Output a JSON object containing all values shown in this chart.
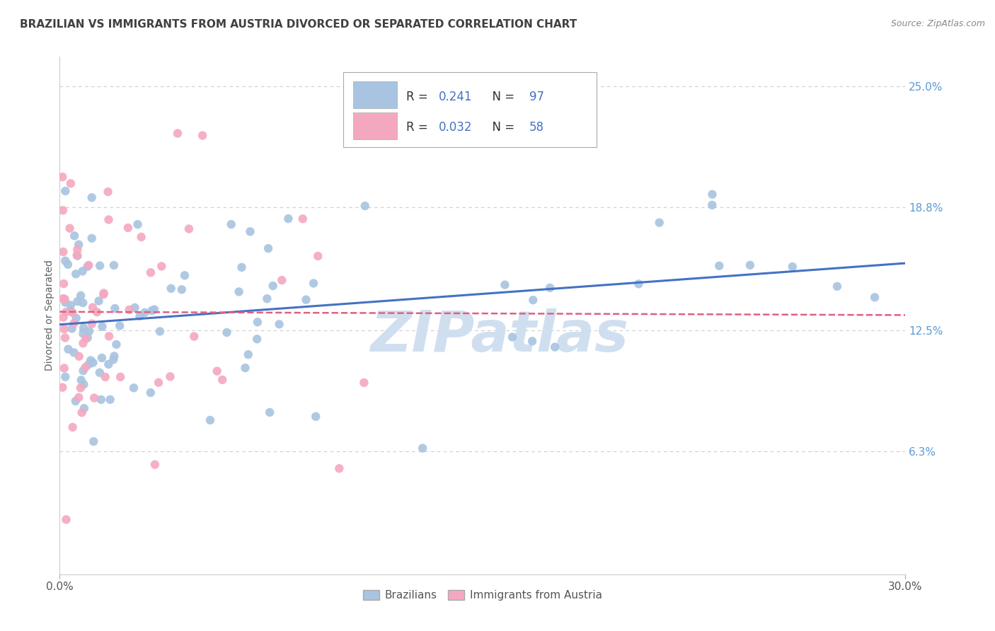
{
  "title": "BRAZILIAN VS IMMIGRANTS FROM AUSTRIA DIVORCED OR SEPARATED CORRELATION CHART",
  "source": "Source: ZipAtlas.com",
  "ylabel": "Divorced or Separated",
  "xmin": 0.0,
  "xmax": 30.0,
  "ymin": 0.0,
  "ymax": 26.5,
  "yticks": [
    6.3,
    12.5,
    18.8,
    25.0
  ],
  "xticks_vals": [
    0.0,
    30.0
  ],
  "xticks_labels": [
    "0.0%",
    "30.0%"
  ],
  "grid_color": "#cccccc",
  "bg_color": "#ffffff",
  "blue_color": "#4472c4",
  "blue_scatter_color": "#a8c4e0",
  "pink_color": "#e06080",
  "pink_scatter_color": "#f4a8c0",
  "tick_color": "#5b9bd5",
  "title_color": "#404040",
  "ylabel_color": "#606060",
  "source_color": "#888888",
  "watermark_color": "#d0dff0",
  "watermark_text": "ZIPatlas",
  "series": [
    {
      "name": "Brazilians",
      "R": 0.241,
      "N": 97,
      "seed": 42
    },
    {
      "name": "Immigrants from Austria",
      "R": 0.032,
      "N": 58,
      "seed": 77
    }
  ],
  "legend_R1": "0.241",
  "legend_N1": "97",
  "legend_R2": "0.032",
  "legend_N2": "58"
}
